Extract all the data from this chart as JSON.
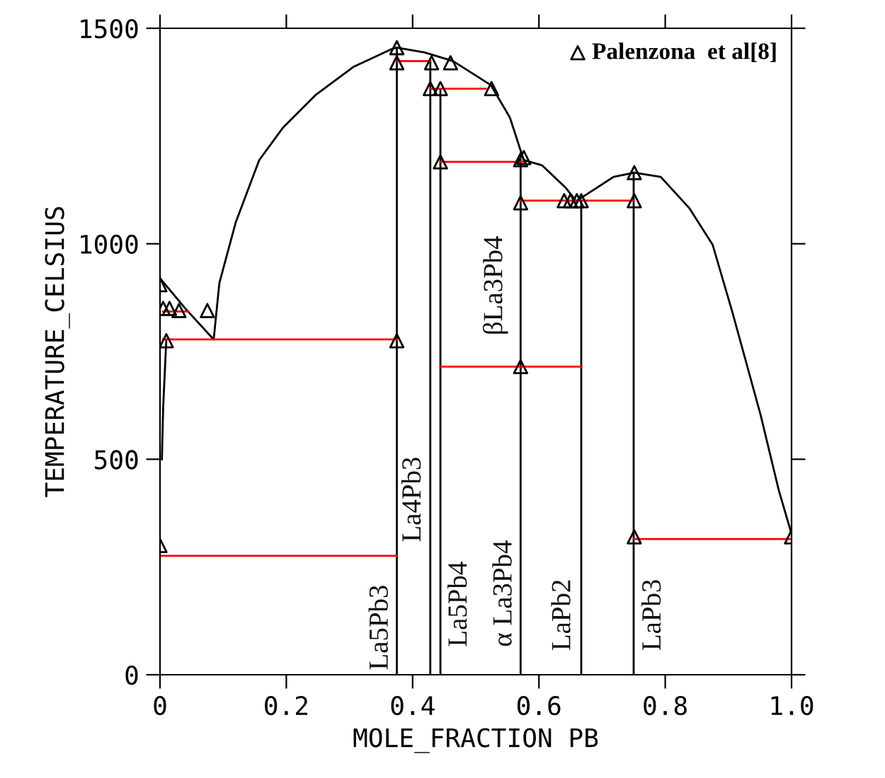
{
  "chart_data": {
    "type": "line",
    "xlabel": "MOLE_FRACTION PB",
    "ylabel": "TEMPERATURE_CELSIUS",
    "xlim": [
      0,
      1
    ],
    "ylim": [
      0,
      1500
    ],
    "xticks": [
      0,
      0.2,
      0.4,
      0.6,
      0.8,
      {
        "value": 1,
        "label": "1.0"
      }
    ],
    "yticks": [
      0,
      500,
      1000,
      1500
    ],
    "grid": false,
    "legend": "top right",
    "marker": "none",
    "line_style": "solid",
    "series": [
      {
        "color": "#000000",
        "x": [
          0,
          0.04,
          0.085,
          0.094,
          0.12,
          0.157,
          0.195,
          0.247,
          0.307,
          0.367,
          0.375,
          0.419,
          0.464,
          0.524,
          0.554,
          0.576,
          0.605,
          0.643,
          0.659,
          0.718,
          0.751,
          0.793,
          0.838,
          0.875,
          0.906,
          0.951,
          0.98,
          1.0
        ],
        "values": [
          920,
          850,
          778,
          909,
          1050,
          1194,
          1270,
          1346,
          1411,
          1452,
          1455,
          1444,
          1424,
          1368,
          1293,
          1194,
          1182,
          1129,
          1099,
          1155,
          1165,
          1155,
          1083,
          998,
          843,
          603,
          427,
          327
        ]
      },
      {
        "color": "#000000",
        "x": [
          0.01,
          0.005,
          0.003
        ],
        "values": [
          778,
          620,
          500
        ]
      },
      {
        "color": "#000000",
        "x": [
          0.375,
          0.375
        ],
        "values": [
          0,
          1455
        ]
      },
      {
        "color": "#000000",
        "x": [
          0.428,
          0.428
        ],
        "values": [
          0,
          1424
        ]
      },
      {
        "color": "#000000",
        "x": [
          0.444,
          0.444
        ],
        "values": [
          0,
          1360
        ]
      },
      {
        "color": "#000000",
        "x": [
          0.571,
          0.571
        ],
        "values": [
          0,
          1195
        ]
      },
      {
        "color": "#000000",
        "x": [
          0.667,
          0.667
        ],
        "values": [
          0,
          1100
        ]
      },
      {
        "color": "#000000",
        "x": [
          0.75,
          0.75
        ],
        "values": [
          0,
          1165
        ]
      },
      {
        "color": "#ff0000",
        "x": [
          0,
          0.375
        ],
        "values": [
          276,
          276
        ]
      },
      {
        "color": "#ff0000",
        "x": [
          0.005,
          0.375
        ],
        "values": [
          778,
          778
        ]
      },
      {
        "color": "#ff0000",
        "x": [
          0.005,
          0.045
        ],
        "values": [
          843,
          843
        ]
      },
      {
        "color": "#ff0000",
        "x": [
          0.375,
          0.428
        ],
        "values": [
          1424,
          1424
        ]
      },
      {
        "color": "#ff0000",
        "x": [
          0.428,
          0.516
        ],
        "values": [
          1360,
          1360
        ]
      },
      {
        "color": "#ff0000",
        "x": [
          0.444,
          0.576
        ],
        "values": [
          1190,
          1190
        ]
      },
      {
        "color": "#ff0000",
        "x": [
          0.444,
          0.667
        ],
        "values": [
          715,
          715
        ]
      },
      {
        "color": "#ff0000",
        "x": [
          0.571,
          0.75
        ],
        "values": [
          1100,
          1100
        ]
      },
      {
        "color": "#ff0000",
        "x": [
          0.75,
          1.0
        ],
        "values": [
          315,
          315
        ]
      },
      {
        "type": "scatter",
        "name": "Palenzona  et al[8]",
        "color": "#000000",
        "marker": "triangle",
        "x": [
          0,
          0.005,
          0.015,
          0.03,
          0.075,
          0.01,
          0,
          0.375,
          0.375,
          0.375,
          0.43,
          0.46,
          0.428,
          0.444,
          0.525,
          0.444,
          0.571,
          0.576,
          0.571,
          0.571,
          0.64,
          0.65,
          0.66,
          0.667,
          0.751,
          0.751,
          0.751,
          1.0
        ],
        "values": [
          905,
          850,
          850,
          845,
          845,
          775,
          300,
          1455,
          1420,
          775,
          1420,
          1420,
          1360,
          1360,
          1360,
          1190,
          1195,
          1200,
          1095,
          715,
          1100,
          1100,
          1100,
          1100,
          1165,
          1100,
          320,
          320
        ]
      }
    ],
    "annotations": [
      "La5Pb3",
      "La4Pb3",
      "La5Pb4",
      "α La3Pb4",
      "βLa3Pb4",
      "LaPb2",
      "LaPb3"
    ]
  }
}
